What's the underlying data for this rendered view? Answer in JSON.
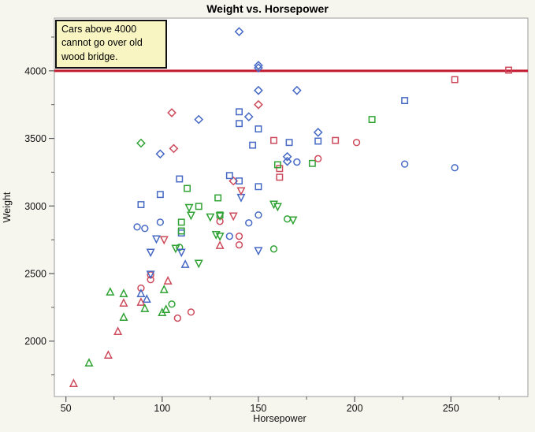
{
  "chart_data": {
    "type": "scatter",
    "title": "Weight vs. Horsepower",
    "xlabel": "Horsepower",
    "ylabel": "Weight",
    "xlim": [
      44,
      290
    ],
    "ylim": [
      1590,
      4390
    ],
    "x_major_ticks": [
      50,
      100,
      150,
      200,
      250
    ],
    "x_minor_ticks": [
      75,
      125,
      175,
      225,
      275
    ],
    "y_major_ticks": [
      2000,
      2500,
      3000,
      3500,
      4000
    ],
    "y_minor_ticks": [
      1750,
      2250,
      2750,
      3250,
      3750,
      4250
    ],
    "grid": false,
    "legend_position": "none",
    "reference_line": {
      "y": 4000,
      "color": "#c4182f",
      "width": 3
    },
    "annotation": {
      "text": "Cars above 4000 cannot go over old wood bridge.",
      "bg_color": "#f8f5c3"
    },
    "marker_colors": {
      "red": "#cd4a5b",
      "blue": "#4568c4",
      "green": "#2fa233"
    },
    "marker_shapes": [
      "circle",
      "square",
      "diamond",
      "triangle-up",
      "triangle-down"
    ],
    "points": [
      [
        140,
        4290,
        "blue",
        "diamond"
      ],
      [
        150,
        4040,
        "blue",
        "diamond"
      ],
      [
        150,
        4022,
        "blue",
        "diamond"
      ],
      [
        170,
        3855,
        "blue",
        "diamond"
      ],
      [
        150,
        3855,
        "blue",
        "diamond"
      ],
      [
        145,
        3660,
        "blue",
        "diamond"
      ],
      [
        119,
        3640,
        "blue",
        "diamond"
      ],
      [
        181,
        3545,
        "blue",
        "diamond"
      ],
      [
        99,
        3385,
        "blue",
        "diamond"
      ],
      [
        165,
        3365,
        "blue",
        "diamond"
      ],
      [
        165,
        3330,
        "blue",
        "diamond"
      ],
      [
        150,
        3750,
        "red",
        "diamond"
      ],
      [
        105,
        3690,
        "red",
        "diamond"
      ],
      [
        106,
        3425,
        "red",
        "diamond"
      ],
      [
        137,
        3185,
        "red",
        "diamond"
      ],
      [
        89,
        3465,
        "green",
        "diamond"
      ],
      [
        280,
        4005,
        "red",
        "square"
      ],
      [
        252,
        3935,
        "red",
        "square"
      ],
      [
        190,
        3485,
        "red",
        "square"
      ],
      [
        158,
        3485,
        "red",
        "square"
      ],
      [
        161,
        3277,
        "red",
        "square"
      ],
      [
        161,
        3213,
        "red",
        "square"
      ],
      [
        226,
        3780,
        "blue",
        "square"
      ],
      [
        140,
        3697,
        "blue",
        "square"
      ],
      [
        140,
        3610,
        "blue",
        "square"
      ],
      [
        150,
        3570,
        "blue",
        "square"
      ],
      [
        181,
        3480,
        "blue",
        "square"
      ],
      [
        166,
        3470,
        "blue",
        "square"
      ],
      [
        147,
        3450,
        "blue",
        "square"
      ],
      [
        135,
        3225,
        "blue",
        "square"
      ],
      [
        140,
        3185,
        "blue",
        "square"
      ],
      [
        109,
        3200,
        "blue",
        "square"
      ],
      [
        150,
        3143,
        "blue",
        "square"
      ],
      [
        99,
        3085,
        "blue",
        "square"
      ],
      [
        89,
        3010,
        "blue",
        "square"
      ],
      [
        110,
        2800,
        "blue",
        "square"
      ],
      [
        209,
        3640,
        "green",
        "square"
      ],
      [
        178,
        3315,
        "green",
        "square"
      ],
      [
        160,
        3305,
        "green",
        "square"
      ],
      [
        129,
        3060,
        "green",
        "square"
      ],
      [
        113,
        3130,
        "green",
        "square"
      ],
      [
        119,
        2997,
        "green",
        "square"
      ],
      [
        110,
        2880,
        "green",
        "square"
      ],
      [
        110,
        2815,
        "green",
        "square"
      ],
      [
        130,
        2933,
        "green",
        "square"
      ],
      [
        201,
        3470,
        "red",
        "circle"
      ],
      [
        181,
        3350,
        "red",
        "circle"
      ],
      [
        130,
        2886,
        "red",
        "circle"
      ],
      [
        140,
        2776,
        "red",
        "circle"
      ],
      [
        140,
        2712,
        "red",
        "circle"
      ],
      [
        94,
        2490,
        "red",
        "circle"
      ],
      [
        94,
        2455,
        "red",
        "circle"
      ],
      [
        89,
        2392,
        "red",
        "circle"
      ],
      [
        115,
        2215,
        "red",
        "circle"
      ],
      [
        108,
        2170,
        "red",
        "circle"
      ],
      [
        170,
        3325,
        "blue",
        "circle"
      ],
      [
        226,
        3310,
        "blue",
        "circle"
      ],
      [
        252,
        3283,
        "blue",
        "circle"
      ],
      [
        150,
        2933,
        "blue",
        "circle"
      ],
      [
        99,
        2880,
        "blue",
        "circle"
      ],
      [
        87,
        2845,
        "blue",
        "circle"
      ],
      [
        91,
        2834,
        "blue",
        "circle"
      ],
      [
        145,
        2875,
        "blue",
        "circle"
      ],
      [
        135,
        2776,
        "blue",
        "circle"
      ],
      [
        165,
        2904,
        "green",
        "circle"
      ],
      [
        158,
        2682,
        "green",
        "circle"
      ],
      [
        109,
        2694,
        "green",
        "circle"
      ],
      [
        105,
        2274,
        "green",
        "circle"
      ],
      [
        158,
        3015,
        "green",
        "triangle-down"
      ],
      [
        160,
        2997,
        "green",
        "triangle-down"
      ],
      [
        114,
        2990,
        "green",
        "triangle-down"
      ],
      [
        115,
        2933,
        "green",
        "triangle-down"
      ],
      [
        125,
        2920,
        "green",
        "triangle-down"
      ],
      [
        130,
        2928,
        "green",
        "triangle-down"
      ],
      [
        168,
        2898,
        "green",
        "triangle-down"
      ],
      [
        128,
        2790,
        "green",
        "triangle-down"
      ],
      [
        130,
        2778,
        "green",
        "triangle-down"
      ],
      [
        107,
        2688,
        "green",
        "triangle-down"
      ],
      [
        119,
        2577,
        "green",
        "triangle-down"
      ],
      [
        141,
        3065,
        "blue",
        "triangle-down"
      ],
      [
        97,
        2758,
        "blue",
        "triangle-down"
      ],
      [
        94,
        2659,
        "blue",
        "triangle-down"
      ],
      [
        110,
        2659,
        "blue",
        "triangle-down"
      ],
      [
        150,
        2671,
        "blue",
        "triangle-down"
      ],
      [
        94,
        2496,
        "blue",
        "triangle-down"
      ],
      [
        141,
        3114,
        "red",
        "triangle-down"
      ],
      [
        137,
        2927,
        "red",
        "triangle-down"
      ],
      [
        101,
        2752,
        "red",
        "triangle-down"
      ],
      [
        112,
        2566,
        "blue",
        "triangle-up"
      ],
      [
        89,
        2350,
        "blue",
        "triangle-up"
      ],
      [
        92,
        2309,
        "blue",
        "triangle-up"
      ],
      [
        130,
        2706,
        "red",
        "triangle-up"
      ],
      [
        103,
        2444,
        "red",
        "triangle-up"
      ],
      [
        89,
        2286,
        "red",
        "triangle-up"
      ],
      [
        80,
        2280,
        "red",
        "triangle-up"
      ],
      [
        77,
        2070,
        "red",
        "triangle-up"
      ],
      [
        72,
        1895,
        "red",
        "triangle-up"
      ],
      [
        54,
        1685,
        "red",
        "triangle-up"
      ],
      [
        101,
        2380,
        "green",
        "triangle-up"
      ],
      [
        73,
        2362,
        "green",
        "triangle-up"
      ],
      [
        80,
        2350,
        "green",
        "triangle-up"
      ],
      [
        91,
        2240,
        "green",
        "triangle-up"
      ],
      [
        102,
        2233,
        "green",
        "triangle-up"
      ],
      [
        100,
        2210,
        "green",
        "triangle-up"
      ],
      [
        80,
        2175,
        "green",
        "triangle-up"
      ],
      [
        62,
        1837,
        "green",
        "triangle-up"
      ]
    ]
  }
}
